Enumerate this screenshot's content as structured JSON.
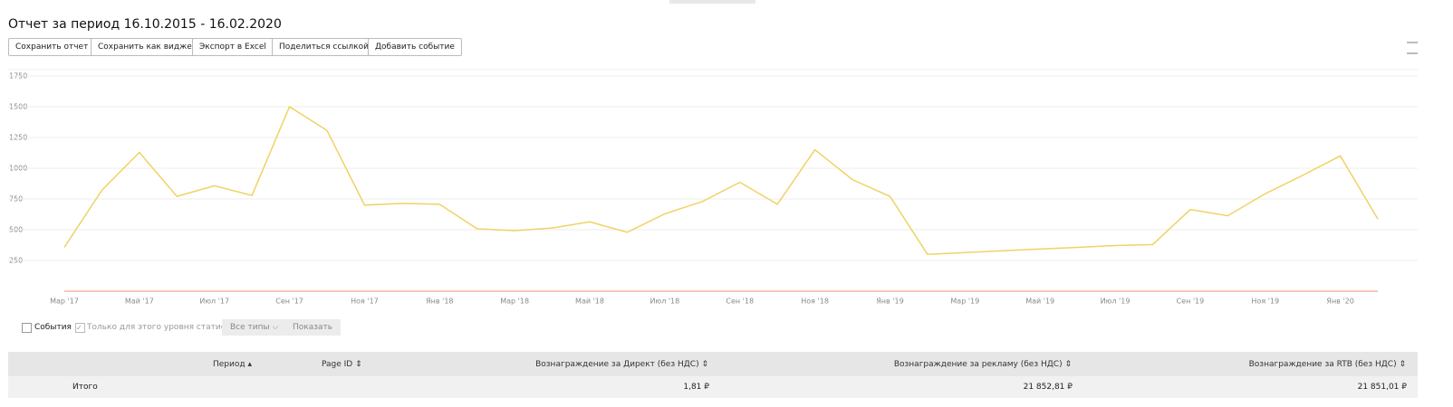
{
  "header": {
    "title": "Отчет за период 16.10.2015 - 16.02.2020"
  },
  "buttons": [
    "Сохранить отчет",
    "Сохранить как виджет",
    "Экспорт в Excel",
    "Поделиться ссылкой",
    "Добавить событие"
  ],
  "chart_data": {
    "type": "line",
    "categories": [
      "Мар '17",
      null,
      "Май '17",
      null,
      "Июл '17",
      null,
      "Сен '17",
      null,
      "Ноя '17",
      null,
      "Янв '18",
      null,
      "Мар '18",
      null,
      "Май '18",
      null,
      "Июл '18",
      null,
      "Сен '18",
      null,
      "Ноя '18",
      null,
      "Янв '19",
      null,
      "Мар '19",
      null,
      "Май '19",
      null,
      "Июл '19",
      null,
      "Сен '19",
      null,
      "Ноя '19",
      null,
      "Янв '20",
      null
    ],
    "series": [
      {
        "color": "#f0d264",
        "values": [
          357,
          821,
          1129,
          771,
          857,
          779,
          1500,
          1307,
          700,
          714,
          707,
          507,
          493,
          514,
          564,
          479,
          629,
          729,
          886,
          707,
          1150,
          907,
          771,
          300,
          314,
          329,
          343,
          357,
          371,
          379,
          664,
          614,
          793,
          943,
          1100,
          586
        ]
      },
      {
        "color": "#f2b6a6",
        "values": [
          0,
          0,
          0,
          0,
          0,
          0,
          0,
          0,
          0,
          0,
          0,
          0,
          0,
          0,
          0,
          0,
          0,
          0,
          0,
          0,
          0,
          0,
          0,
          0,
          0,
          0,
          0,
          0,
          0,
          0,
          0,
          0,
          0,
          0,
          0,
          0
        ]
      }
    ],
    "ylim": [
      0,
      1750
    ],
    "yticks": [
      250,
      500,
      750,
      1000,
      1250,
      1500,
      1750
    ],
    "grid": true
  },
  "filters": {
    "events": "События",
    "level_only": "Только для этого уровня статистики",
    "types": "Все типы",
    "show": "Показать"
  },
  "table": {
    "columns": [
      "Период",
      "Page ID",
      "Вознаграждение за Директ (без НДС)",
      "Вознаграждение за рекламу (без НДС)",
      "Вознаграждение за RTB (без НДС)"
    ],
    "rows": [
      {
        "label": "Итого",
        "values": [
          "1,81 ₽",
          "21 852,81 ₽",
          "21 851,01 ₽"
        ]
      }
    ]
  }
}
